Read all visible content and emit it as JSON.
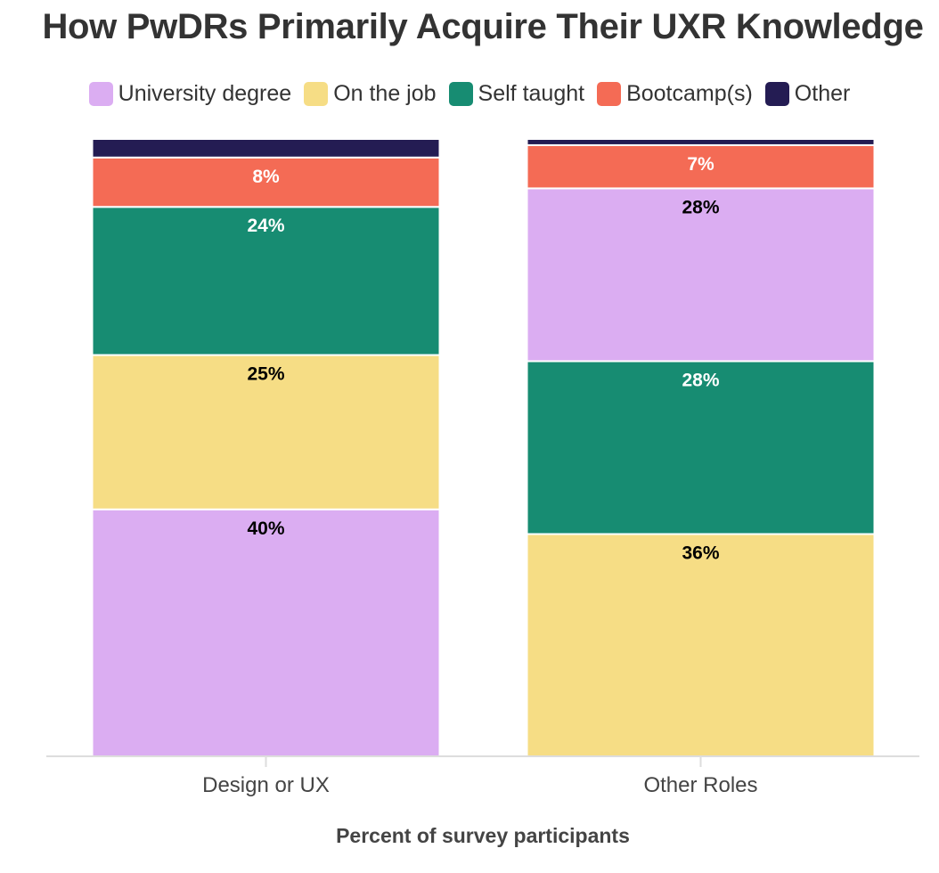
{
  "chart_data": {
    "type": "bar",
    "stacked": true,
    "title": "How PwDRs Primarily Acquire Their UXR Knowledge",
    "xlabel": "Percent of survey participants",
    "ylabel": "",
    "ylim": [
      0,
      100
    ],
    "grid": false,
    "legend_position": "top",
    "categories": [
      "Design or UX",
      "Other Roles"
    ],
    "series": [
      {
        "name": "University degree",
        "color": "#dbadf2",
        "label_color": "#000000",
        "values": [
          40,
          28
        ]
      },
      {
        "name": "On the job",
        "color": "#f6dd85",
        "label_color": "#000000",
        "values": [
          25,
          36
        ]
      },
      {
        "name": "Self taught",
        "color": "#178c72",
        "label_color": "#ffffff",
        "values": [
          24,
          28
        ]
      },
      {
        "name": "Bootcamp(s)",
        "color": "#f46b55",
        "label_color": "#ffffff",
        "values": [
          8,
          7
        ]
      },
      {
        "name": "Other",
        "color": "#241c53",
        "label_color": "#ffffff",
        "values": [
          3,
          1
        ]
      }
    ],
    "stack_order": [
      [
        "University degree",
        "On the job",
        "Self taught",
        "Bootcamp(s)",
        "Other"
      ],
      [
        "On the job",
        "Self taught",
        "University degree",
        "Bootcamp(s)",
        "Other"
      ]
    ],
    "data_labels": [
      [
        "40%",
        "25%",
        "24%",
        "8%",
        ""
      ],
      [
        "36%",
        "28%",
        "28%",
        "7%",
        ""
      ]
    ]
  }
}
